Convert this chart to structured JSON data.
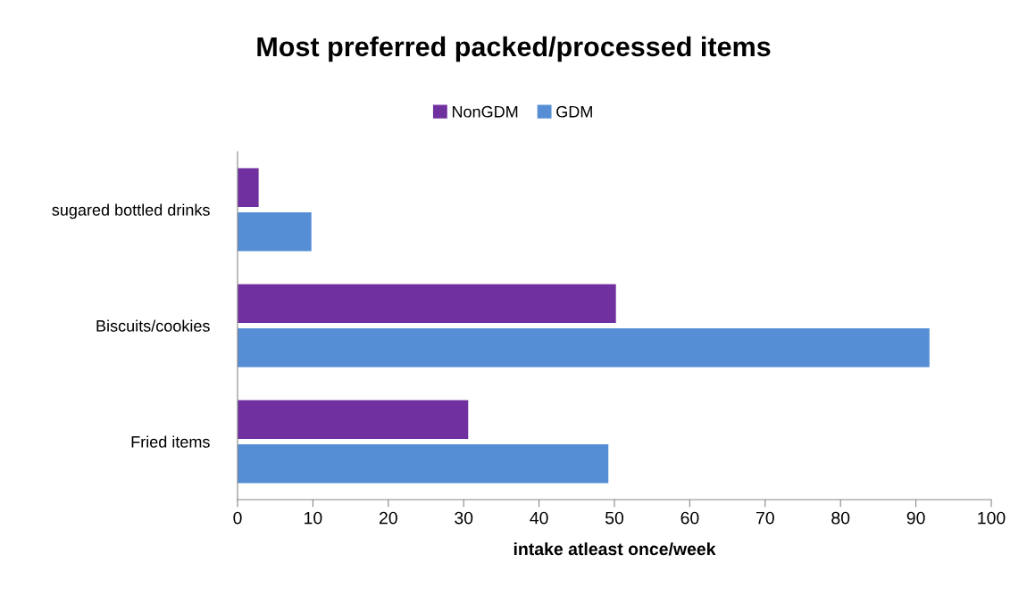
{
  "chart_data": {
    "type": "bar",
    "orientation": "horizontal",
    "title": "Most preferred packed/processed items",
    "xlabel": "intake atleast once/week",
    "categories": [
      "sugared bottled drinks",
      "Biscuits/cookies",
      "Fried items"
    ],
    "series": [
      {
        "name": "NonGDM",
        "color": "#7030a0",
        "values": [
          2.8,
          50.2,
          30.6
        ]
      },
      {
        "name": "GDM",
        "color": "#558ed5",
        "values": [
          9.8,
          91.8,
          49.2
        ]
      }
    ],
    "xlim": [
      0,
      100
    ],
    "xticks": [
      0,
      10,
      20,
      30,
      40,
      50,
      60,
      70,
      80,
      90,
      100
    ],
    "grid": false,
    "legend": "top"
  }
}
